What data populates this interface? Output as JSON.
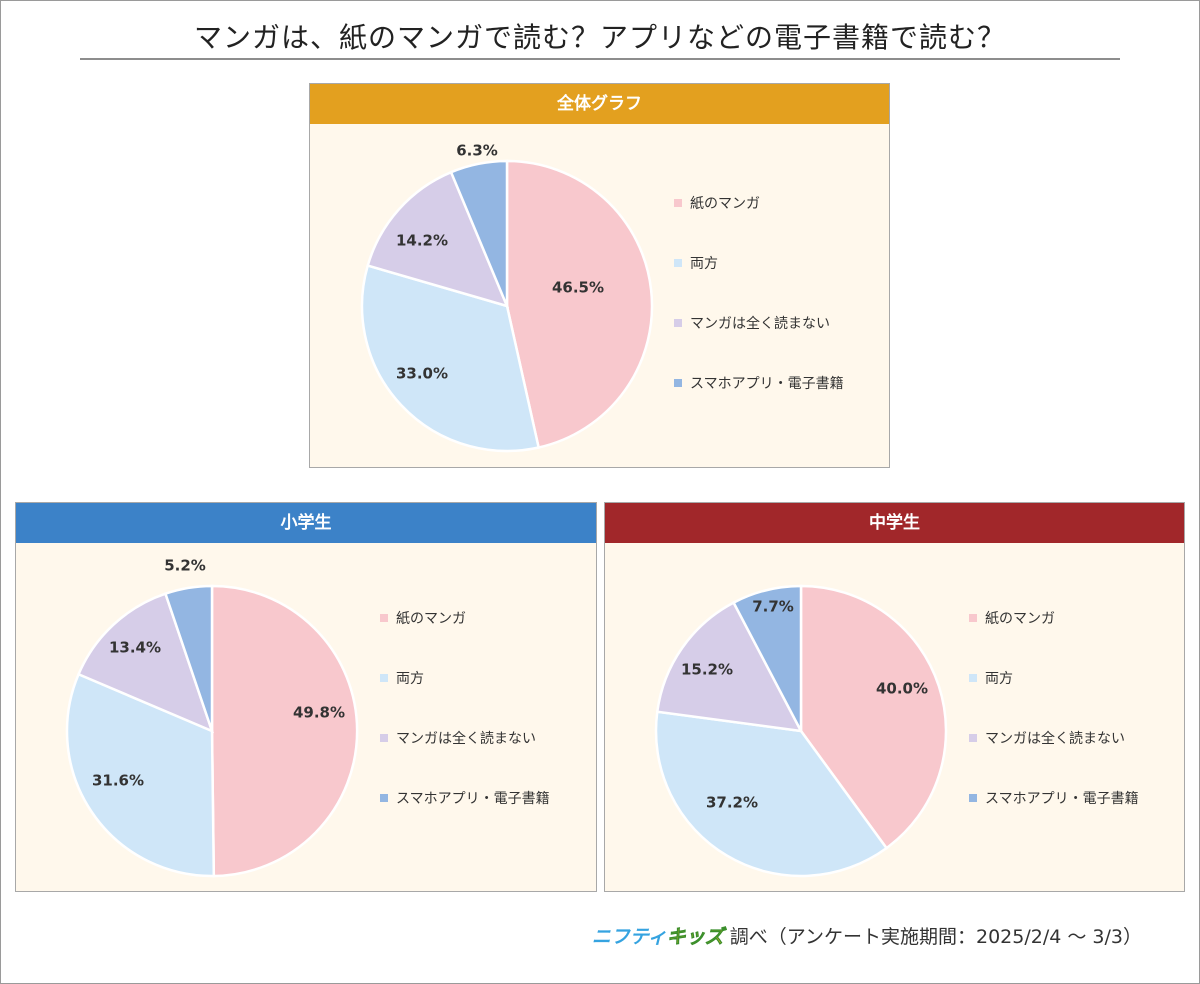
{
  "title": "マンガは、紙のマンガで読む？アプリなどの電子書籍で読む？",
  "legend_labels": [
    "紙のマンガ",
    "両方",
    "マンガは全く読まない",
    "スマホアプリ・電子書籍"
  ],
  "colors": {
    "paper": "#f8c8cd",
    "both": "#cfe6f8",
    "none": "#d6cde8",
    "digital": "#93b6e2",
    "header_all": "#e3a01f",
    "header_elem": "#3c82c8",
    "header_middle": "#a1272a",
    "panel_bg": "#fff8ec"
  },
  "footer": {
    "logo_part1": "ニフティ",
    "logo_part2": "キッズ",
    "text": "調べ（アンケート実施期間：2025/2/4 ～ 3/3）"
  },
  "chart_data": [
    {
      "type": "pie",
      "title": "全体グラフ",
      "categories": [
        "紙のマンガ",
        "両方",
        "マンガは全く読まない",
        "スマホアプリ・電子書籍"
      ],
      "values": [
        46.5,
        33.0,
        14.2,
        6.3
      ],
      "labels": [
        "46.5%",
        "33.0%",
        "14.2%",
        "6.3%"
      ],
      "legend": "right"
    },
    {
      "type": "pie",
      "title": "小学生",
      "categories": [
        "紙のマンガ",
        "両方",
        "マンガは全く読まない",
        "スマホアプリ・電子書籍"
      ],
      "values": [
        49.8,
        31.6,
        13.4,
        5.2
      ],
      "labels": [
        "49.8%",
        "31.6%",
        "13.4%",
        "5.2%"
      ],
      "legend": "right"
    },
    {
      "type": "pie",
      "title": "中学生",
      "categories": [
        "紙のマンガ",
        "両方",
        "マンガは全く読まない",
        "スマホアプリ・電子書籍"
      ],
      "values": [
        40.0,
        37.2,
        15.2,
        7.7
      ],
      "labels": [
        "40.0%",
        "37.2%",
        "15.2%",
        "7.7%"
      ],
      "legend": "right"
    }
  ]
}
